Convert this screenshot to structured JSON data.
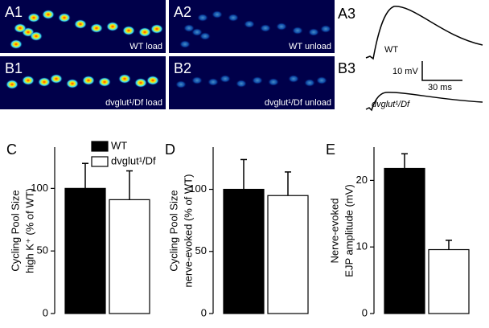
{
  "figure": {
    "panel_labels": [
      "A1",
      "A2",
      "A3",
      "B1",
      "B2",
      "B3"
    ],
    "image_captions": [
      "WT load",
      "WT unload",
      "dvglut¹/Df load",
      "dvglut¹/Df unload"
    ],
    "trace_labels": [
      "WT",
      "dvglut¹/Df"
    ],
    "scale_bar": [
      "10 mV",
      "30 ms"
    ]
  },
  "chart_data": [
    {
      "type": "bar",
      "panel": "C",
      "ylabel": [
        "Cycling Pool Size",
        "high K⁺ (% of WT)"
      ],
      "values": [
        100,
        91
      ],
      "errors": [
        20,
        23
      ],
      "colors": [
        "#000000",
        "#ffffff"
      ],
      "legend": [
        "WT",
        "dvglut¹/Df"
      ],
      "ylim": [
        0,
        133
      ],
      "yticks": [
        0,
        50,
        100
      ]
    },
    {
      "type": "bar",
      "panel": "D",
      "ylabel": [
        "Cycling Pool Size",
        "nerve-evoked  (% of WT)"
      ],
      "values": [
        100,
        95
      ],
      "errors": [
        24,
        19
      ],
      "colors": [
        "#000000",
        "#ffffff"
      ],
      "ylim": [
        0,
        134
      ],
      "yticks": [
        0,
        50,
        100
      ]
    },
    {
      "type": "bar",
      "panel": "E",
      "ylabel": [
        "Nerve-evoked",
        "EJP amplitude (mV)"
      ],
      "values": [
        21.8,
        9.6
      ],
      "errors": [
        2.2,
        1.4
      ],
      "colors": [
        "#000000",
        "#ffffff"
      ],
      "ylim": [
        0,
        25
      ],
      "yticks": [
        0,
        10,
        20
      ]
    }
  ]
}
